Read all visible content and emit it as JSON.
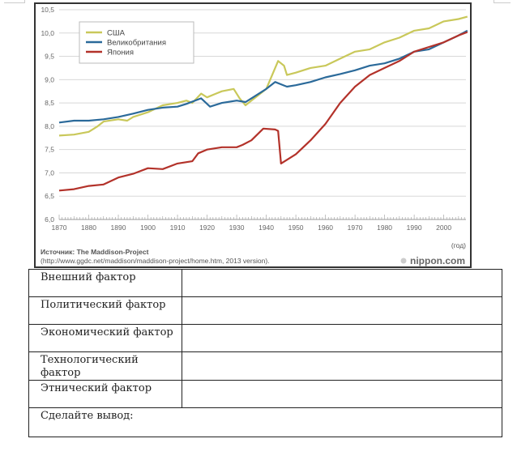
{
  "chart_data": {
    "type": "line",
    "title": "",
    "xlabel": "(год)",
    "ylabel": "",
    "xlim": [
      1870,
      2008
    ],
    "ylim": [
      6.0,
      10.5
    ],
    "grid": true,
    "legend_position": "top-left",
    "y_ticks": [
      "6,0",
      "6,5",
      "7,0",
      "7,5",
      "8,0",
      "8,5",
      "9,0",
      "9,5",
      "10,0",
      "10,5"
    ],
    "y_tick_values": [
      6.0,
      6.5,
      7.0,
      7.5,
      8.0,
      8.5,
      9.0,
      9.5,
      10.0,
      10.5
    ],
    "x_ticks": [
      "1870",
      "1880",
      "1890",
      "1900",
      "1910",
      "1920",
      "1930",
      "1940",
      "1950",
      "1960",
      "1970",
      "1980",
      "1990",
      "2000"
    ],
    "x_tick_values": [
      1870,
      1880,
      1890,
      1900,
      1910,
      1920,
      1930,
      1940,
      1950,
      1960,
      1970,
      1980,
      1990,
      2000
    ],
    "series": [
      {
        "name": "США",
        "color": "#c9c85a",
        "x": [
          1870,
          1875,
          1880,
          1883,
          1885,
          1890,
          1893,
          1895,
          1900,
          1905,
          1910,
          1913,
          1915,
          1918,
          1920,
          1923,
          1925,
          1929,
          1931,
          1933,
          1935,
          1937,
          1940,
          1942,
          1944,
          1946,
          1947,
          1950,
          1955,
          1960,
          1965,
          1970,
          1975,
          1980,
          1985,
          1990,
          1995,
          2000,
          2005,
          2008
        ],
        "values": [
          7.8,
          7.82,
          7.88,
          8.0,
          8.1,
          8.15,
          8.12,
          8.2,
          8.3,
          8.45,
          8.5,
          8.55,
          8.5,
          8.7,
          8.62,
          8.7,
          8.75,
          8.8,
          8.6,
          8.45,
          8.55,
          8.65,
          8.8,
          9.1,
          9.4,
          9.3,
          9.1,
          9.15,
          9.25,
          9.3,
          9.45,
          9.6,
          9.65,
          9.8,
          9.9,
          10.05,
          10.1,
          10.25,
          10.3,
          10.35
        ]
      },
      {
        "name": "Великобритания",
        "color": "#2b6a9a",
        "x": [
          1870,
          1875,
          1880,
          1885,
          1890,
          1895,
          1900,
          1905,
          1910,
          1913,
          1918,
          1921,
          1925,
          1930,
          1933,
          1935,
          1940,
          1943,
          1945,
          1947,
          1950,
          1955,
          1960,
          1965,
          1970,
          1975,
          1980,
          1985,
          1990,
          1995,
          2000,
          2005,
          2008
        ],
        "values": [
          8.08,
          8.12,
          8.12,
          8.15,
          8.2,
          8.27,
          8.35,
          8.4,
          8.42,
          8.48,
          8.6,
          8.42,
          8.5,
          8.55,
          8.52,
          8.6,
          8.8,
          8.95,
          8.9,
          8.85,
          8.88,
          8.95,
          9.05,
          9.12,
          9.2,
          9.3,
          9.35,
          9.45,
          9.6,
          9.65,
          9.8,
          9.95,
          10.05
        ]
      },
      {
        "name": "Япония",
        "color": "#b3322a",
        "x": [
          1870,
          1875,
          1880,
          1885,
          1890,
          1895,
          1900,
          1905,
          1910,
          1915,
          1917,
          1920,
          1925,
          1930,
          1932,
          1935,
          1939,
          1943,
          1944,
          1945,
          1950,
          1955,
          1960,
          1965,
          1970,
          1975,
          1980,
          1985,
          1990,
          1995,
          2000,
          2005,
          2008
        ],
        "values": [
          6.62,
          6.65,
          6.72,
          6.75,
          6.9,
          6.98,
          7.1,
          7.08,
          7.2,
          7.25,
          7.42,
          7.5,
          7.55,
          7.55,
          7.6,
          7.7,
          7.95,
          7.93,
          7.9,
          7.2,
          7.4,
          7.7,
          8.05,
          8.5,
          8.85,
          9.1,
          9.25,
          9.4,
          9.6,
          9.7,
          9.8,
          9.95,
          10.02
        ]
      }
    ],
    "source_line1": "Источник: The Maddison-Project",
    "source_line2": "(http://www.ggdc.net/maddison/maddison-project/home.htm, 2013 version).",
    "watermark": "nippon.com"
  },
  "table": {
    "rows": [
      {
        "label": "Внешний фактор",
        "value": ""
      },
      {
        "label": "Политический фактор",
        "value": ""
      },
      {
        "label": "Экономический фактор",
        "value": ""
      },
      {
        "label": "Технологический фактор",
        "value": ""
      },
      {
        "label": "Этнический фактор",
        "value": ""
      }
    ],
    "conclusion_label": "Сделайте вывод:"
  }
}
